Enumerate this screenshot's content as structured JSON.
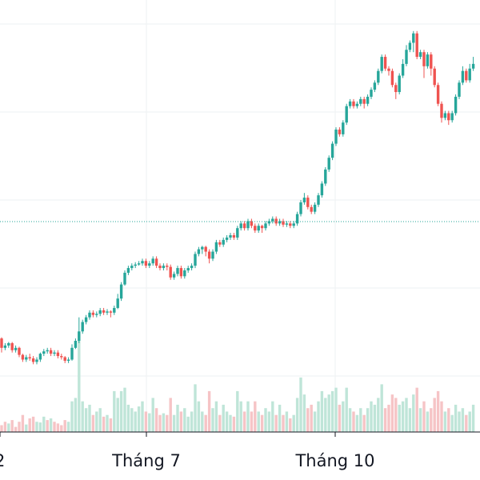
{
  "chart_data": {
    "type": "candlestick",
    "x_ticks": [
      "Tháng 7",
      "Tháng 10"
    ],
    "reference_price_line": true,
    "grid": true,
    "colors": {
      "up": "#26a69a",
      "down": "#ef5350",
      "up_volume": "#bfe5d8",
      "down_volume": "#f6c4c6",
      "grid": "#eef0f3",
      "axis": "#131722",
      "reference": "#26a69a"
    },
    "candles": [
      [
        2.6,
        2.2,
        2.0,
        2.65
      ],
      [
        2.2,
        2.3,
        2.1,
        2.4
      ],
      [
        2.3,
        2.4,
        2.2,
        2.45
      ],
      [
        2.4,
        2.1,
        2.0,
        2.45
      ],
      [
        2.1,
        2.2,
        2.0,
        2.3
      ],
      [
        2.2,
        1.9,
        1.8,
        2.25
      ],
      [
        1.9,
        1.7,
        1.6,
        1.95
      ],
      [
        1.7,
        1.8,
        1.6,
        1.9
      ],
      [
        1.8,
        1.75,
        1.65,
        1.95
      ],
      [
        1.75,
        1.6,
        1.5,
        1.85
      ],
      [
        1.6,
        1.7,
        1.5,
        1.8
      ],
      [
        1.7,
        1.95,
        1.6,
        2.0
      ],
      [
        1.95,
        2.05,
        1.85,
        2.15
      ],
      [
        2.05,
        2.1,
        1.95,
        2.2
      ],
      [
        2.1,
        1.95,
        1.85,
        2.2
      ],
      [
        1.95,
        2.0,
        1.85,
        2.1
      ],
      [
        2.0,
        1.85,
        1.75,
        2.1
      ],
      [
        1.85,
        1.8,
        1.7,
        1.95
      ],
      [
        1.8,
        1.65,
        1.55,
        1.85
      ],
      [
        1.65,
        1.7,
        1.55,
        1.8
      ],
      [
        1.7,
        2.2,
        1.65,
        2.35
      ],
      [
        2.2,
        2.5,
        2.15,
        2.6
      ],
      [
        2.5,
        2.9,
        2.4,
        3.5
      ],
      [
        2.9,
        3.3,
        2.8,
        3.4
      ],
      [
        3.3,
        3.5,
        3.2,
        3.6
      ],
      [
        3.5,
        3.7,
        3.4,
        3.8
      ],
      [
        3.7,
        3.6,
        3.5,
        3.8
      ],
      [
        3.6,
        3.65,
        3.5,
        3.75
      ],
      [
        3.65,
        3.8,
        3.55,
        3.9
      ],
      [
        3.8,
        3.7,
        3.6,
        3.9
      ],
      [
        3.7,
        3.75,
        3.6,
        3.85
      ],
      [
        3.75,
        3.7,
        3.5,
        3.8
      ],
      [
        3.7,
        3.9,
        3.6,
        4.0
      ],
      [
        3.9,
        4.3,
        3.85,
        4.5
      ],
      [
        4.3,
        4.9,
        4.2,
        5.0
      ],
      [
        4.9,
        5.4,
        4.85,
        5.5
      ],
      [
        5.4,
        5.6,
        5.3,
        5.7
      ],
      [
        5.6,
        5.7,
        5.5,
        5.8
      ],
      [
        5.7,
        5.75,
        5.6,
        5.85
      ],
      [
        5.75,
        5.8,
        5.7,
        5.9
      ],
      [
        5.8,
        5.9,
        5.7,
        6.0
      ],
      [
        5.9,
        5.7,
        5.6,
        6.0
      ],
      [
        5.7,
        5.8,
        5.6,
        5.9
      ],
      [
        5.8,
        6.0,
        5.7,
        6.1
      ],
      [
        6.0,
        5.7,
        5.6,
        6.1
      ],
      [
        5.7,
        5.6,
        5.5,
        5.8
      ],
      [
        5.6,
        5.7,
        5.5,
        5.8
      ],
      [
        5.7,
        5.65,
        5.5,
        5.8
      ],
      [
        5.65,
        5.2,
        5.1,
        5.75
      ],
      [
        5.2,
        5.35,
        5.1,
        5.45
      ],
      [
        5.35,
        5.6,
        5.25,
        5.7
      ],
      [
        5.6,
        5.25,
        5.15,
        5.7
      ],
      [
        5.25,
        5.5,
        5.15,
        5.6
      ],
      [
        5.5,
        5.6,
        5.4,
        5.7
      ],
      [
        5.6,
        5.7,
        5.5,
        5.8
      ],
      [
        5.7,
        6.2,
        5.6,
        6.3
      ],
      [
        6.2,
        6.4,
        6.1,
        6.5
      ],
      [
        6.4,
        6.5,
        6.2,
        6.55
      ],
      [
        6.5,
        6.3,
        6.1,
        6.55
      ],
      [
        6.3,
        6.0,
        5.8,
        6.4
      ],
      [
        6.0,
        6.3,
        5.9,
        6.4
      ],
      [
        6.3,
        6.7,
        6.2,
        6.8
      ],
      [
        6.7,
        6.6,
        6.5,
        6.8
      ],
      [
        6.6,
        6.8,
        6.5,
        6.9
      ],
      [
        6.8,
        6.9,
        6.7,
        7.0
      ],
      [
        6.9,
        7.0,
        6.8,
        7.1
      ],
      [
        7.0,
        6.9,
        6.8,
        7.1
      ],
      [
        6.9,
        7.3,
        6.8,
        7.4
      ],
      [
        7.3,
        7.5,
        7.2,
        7.6
      ],
      [
        7.5,
        7.3,
        7.2,
        7.6
      ],
      [
        7.3,
        7.6,
        7.2,
        7.7
      ],
      [
        7.6,
        7.4,
        7.3,
        7.7
      ],
      [
        7.4,
        7.2,
        7.1,
        7.5
      ],
      [
        7.2,
        7.4,
        7.1,
        7.5
      ],
      [
        7.4,
        7.3,
        7.1,
        7.45
      ],
      [
        7.3,
        7.5,
        7.2,
        7.6
      ],
      [
        7.5,
        7.6,
        7.4,
        7.7
      ],
      [
        7.6,
        7.7,
        7.5,
        7.8
      ],
      [
        7.7,
        7.5,
        7.4,
        7.8
      ],
      [
        7.5,
        7.6,
        7.4,
        7.7
      ],
      [
        7.6,
        7.45,
        7.35,
        7.7
      ],
      [
        7.45,
        7.5,
        7.35,
        7.6
      ],
      [
        7.5,
        7.4,
        7.3,
        7.6
      ],
      [
        7.4,
        7.5,
        7.3,
        7.6
      ],
      [
        7.5,
        7.9,
        7.4,
        8.0
      ],
      [
        7.9,
        8.4,
        7.8,
        8.5
      ],
      [
        8.4,
        8.6,
        8.3,
        8.8
      ],
      [
        8.6,
        8.2,
        8.1,
        8.7
      ],
      [
        8.2,
        8.0,
        7.9,
        8.3
      ],
      [
        8.0,
        8.3,
        7.9,
        8.4
      ],
      [
        8.3,
        8.7,
        8.2,
        8.8
      ],
      [
        8.7,
        9.2,
        8.6,
        9.3
      ],
      [
        9.2,
        9.8,
        9.1,
        9.9
      ],
      [
        9.8,
        10.3,
        9.7,
        10.4
      ],
      [
        10.3,
        10.9,
        10.2,
        11.0
      ],
      [
        10.9,
        11.5,
        10.8,
        11.6
      ],
      [
        11.5,
        11.3,
        11.2,
        11.6
      ],
      [
        11.3,
        11.8,
        11.2,
        11.9
      ],
      [
        11.8,
        12.5,
        11.7,
        12.6
      ],
      [
        12.5,
        12.7,
        12.4,
        12.8
      ],
      [
        12.7,
        12.5,
        12.4,
        12.8
      ],
      [
        12.5,
        12.6,
        12.4,
        12.7
      ],
      [
        12.6,
        12.8,
        12.5,
        12.9
      ],
      [
        12.8,
        12.6,
        12.4,
        12.9
      ],
      [
        12.6,
        12.9,
        12.5,
        13.0
      ],
      [
        12.9,
        13.2,
        12.8,
        13.3
      ],
      [
        13.2,
        13.5,
        13.1,
        13.6
      ],
      [
        13.5,
        14.0,
        13.4,
        14.1
      ],
      [
        14.0,
        14.6,
        13.9,
        14.7
      ],
      [
        14.6,
        14.1,
        14.0,
        14.7
      ],
      [
        14.1,
        14.0,
        13.8,
        14.2
      ],
      [
        14.0,
        13.4,
        13.3,
        14.1
      ],
      [
        13.4,
        13.1,
        12.8,
        13.5
      ],
      [
        13.1,
        13.8,
        13.0,
        13.9
      ],
      [
        13.8,
        14.3,
        13.7,
        14.5
      ],
      [
        14.3,
        14.9,
        14.2,
        15.1
      ],
      [
        14.9,
        15.2,
        14.8,
        15.3
      ],
      [
        15.2,
        15.6,
        14.8,
        15.7
      ],
      [
        15.6,
        14.6,
        14.5,
        15.7
      ],
      [
        14.6,
        14.8,
        14.5,
        14.9
      ],
      [
        14.8,
        14.2,
        13.7,
        14.9
      ],
      [
        14.2,
        14.7,
        14.1,
        14.8
      ],
      [
        14.7,
        14.1,
        13.8,
        14.8
      ],
      [
        14.1,
        13.4,
        13.3,
        14.2
      ],
      [
        13.4,
        12.6,
        12.5,
        13.5
      ],
      [
        12.6,
        12.0,
        11.8,
        12.7
      ],
      [
        12.0,
        12.2,
        11.9,
        12.3
      ],
      [
        12.2,
        11.9,
        11.7,
        12.3
      ],
      [
        11.9,
        12.2,
        11.8,
        12.3
      ],
      [
        12.2,
        12.9,
        12.1,
        13.0
      ],
      [
        12.9,
        13.5,
        12.8,
        13.6
      ],
      [
        13.5,
        14.0,
        13.4,
        14.2
      ],
      [
        14.0,
        13.6,
        13.5,
        14.1
      ],
      [
        13.6,
        14.1,
        13.5,
        14.3
      ],
      [
        14.1,
        14.3,
        14.0,
        14.6
      ]
    ],
    "volumes": [
      [
        0.2,
        0
      ],
      [
        0.3,
        0
      ],
      [
        0.25,
        1
      ],
      [
        0.35,
        0
      ],
      [
        0.15,
        0
      ],
      [
        0.3,
        0
      ],
      [
        0.5,
        0
      ],
      [
        0.22,
        1
      ],
      [
        0.4,
        0
      ],
      [
        0.45,
        0
      ],
      [
        0.3,
        1
      ],
      [
        0.28,
        1
      ],
      [
        0.45,
        1
      ],
      [
        0.35,
        0
      ],
      [
        0.4,
        1
      ],
      [
        0.3,
        0
      ],
      [
        0.25,
        0
      ],
      [
        0.2,
        0
      ],
      [
        0.35,
        0
      ],
      [
        0.3,
        1
      ],
      [
        0.9,
        1
      ],
      [
        1.0,
        1
      ],
      [
        2.7,
        1
      ],
      [
        0.9,
        1
      ],
      [
        0.7,
        1
      ],
      [
        0.8,
        1
      ],
      [
        0.5,
        0
      ],
      [
        0.6,
        1
      ],
      [
        0.7,
        1
      ],
      [
        0.45,
        0
      ],
      [
        0.5,
        1
      ],
      [
        0.4,
        0
      ],
      [
        1.2,
        1
      ],
      [
        1.0,
        1
      ],
      [
        1.2,
        1
      ],
      [
        1.3,
        1
      ],
      [
        0.8,
        1
      ],
      [
        0.7,
        1
      ],
      [
        0.6,
        1
      ],
      [
        0.75,
        1
      ],
      [
        0.9,
        1
      ],
      [
        0.6,
        0
      ],
      [
        0.55,
        1
      ],
      [
        1.0,
        1
      ],
      [
        0.7,
        0
      ],
      [
        0.5,
        0
      ],
      [
        0.55,
        1
      ],
      [
        0.5,
        0
      ],
      [
        1.0,
        0
      ],
      [
        0.5,
        1
      ],
      [
        0.8,
        1
      ],
      [
        0.6,
        0
      ],
      [
        0.7,
        1
      ],
      [
        0.45,
        1
      ],
      [
        0.6,
        1
      ],
      [
        1.4,
        1
      ],
      [
        0.9,
        1
      ],
      [
        0.6,
        1
      ],
      [
        0.5,
        0
      ],
      [
        1.2,
        0
      ],
      [
        0.7,
        1
      ],
      [
        0.9,
        1
      ],
      [
        0.5,
        0
      ],
      [
        0.8,
        1
      ],
      [
        0.6,
        1
      ],
      [
        0.5,
        1
      ],
      [
        0.45,
        0
      ],
      [
        1.2,
        1
      ],
      [
        0.9,
        1
      ],
      [
        0.6,
        0
      ],
      [
        0.9,
        1
      ],
      [
        0.6,
        0
      ],
      [
        0.9,
        0
      ],
      [
        0.6,
        1
      ],
      [
        0.5,
        0
      ],
      [
        0.7,
        1
      ],
      [
        0.6,
        1
      ],
      [
        0.9,
        1
      ],
      [
        0.5,
        0
      ],
      [
        0.8,
        1
      ],
      [
        0.5,
        0
      ],
      [
        0.6,
        1
      ],
      [
        0.4,
        0
      ],
      [
        0.5,
        1
      ],
      [
        1.0,
        1
      ],
      [
        1.6,
        1
      ],
      [
        1.1,
        1
      ],
      [
        0.7,
        0
      ],
      [
        0.8,
        0
      ],
      [
        0.6,
        1
      ],
      [
        0.9,
        1
      ],
      [
        1.2,
        1
      ],
      [
        1.0,
        1
      ],
      [
        1.1,
        1
      ],
      [
        1.2,
        1
      ],
      [
        1.3,
        1
      ],
      [
        0.8,
        0
      ],
      [
        0.9,
        1
      ],
      [
        1.3,
        1
      ],
      [
        0.7,
        1
      ],
      [
        0.6,
        0
      ],
      [
        0.5,
        1
      ],
      [
        0.7,
        1
      ],
      [
        0.5,
        0
      ],
      [
        0.7,
        1
      ],
      [
        0.9,
        1
      ],
      [
        0.8,
        1
      ],
      [
        1.0,
        1
      ],
      [
        1.4,
        1
      ],
      [
        0.7,
        0
      ],
      [
        0.8,
        0
      ],
      [
        1.1,
        0
      ],
      [
        1.0,
        0
      ],
      [
        0.8,
        1
      ],
      [
        0.9,
        1
      ],
      [
        1.0,
        1
      ],
      [
        0.7,
        1
      ],
      [
        1.1,
        1
      ],
      [
        1.3,
        0
      ],
      [
        0.7,
        1
      ],
      [
        0.9,
        0
      ],
      [
        0.6,
        1
      ],
      [
        0.7,
        0
      ],
      [
        1.0,
        0
      ],
      [
        1.2,
        0
      ],
      [
        0.9,
        0
      ],
      [
        0.6,
        1
      ],
      [
        0.7,
        0
      ],
      [
        0.5,
        1
      ],
      [
        0.8,
        1
      ],
      [
        0.6,
        1
      ],
      [
        0.7,
        1
      ],
      [
        0.5,
        0
      ],
      [
        0.6,
        1
      ],
      [
        0.8,
        1
      ]
    ]
  }
}
